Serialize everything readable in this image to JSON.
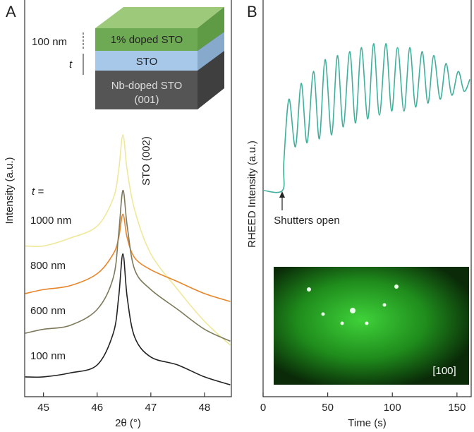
{
  "chart_data": [
    {
      "type": "line",
      "panel": "A",
      "xlabel": "2θ (°)",
      "ylabel": "Intensity (a.u.)",
      "annotations": [
        "STO (002)",
        "t ="
      ],
      "x": [
        44.66,
        45,
        45.5,
        46,
        46.3,
        46.4,
        46.48,
        46.56,
        46.7,
        47,
        47.5,
        48,
        48.48
      ],
      "series": [
        {
          "name": "1000 nm",
          "color": "#efe89a",
          "values": [
            0.38,
            0.38,
            0.4,
            0.43,
            0.5,
            0.57,
            0.66,
            0.57,
            0.47,
            0.36,
            0.27,
            0.19,
            0.13
          ]
        },
        {
          "name": "800 nm",
          "color": "#e8852a",
          "values": [
            0.26,
            0.27,
            0.28,
            0.31,
            0.36,
            0.4,
            0.46,
            0.4,
            0.35,
            0.32,
            0.29,
            0.26,
            0.24
          ]
        },
        {
          "name": "600 nm",
          "color": "#7d7a5c",
          "values": [
            0.16,
            0.17,
            0.18,
            0.22,
            0.3,
            0.41,
            0.52,
            0.43,
            0.32,
            0.27,
            0.22,
            0.17,
            0.14
          ]
        },
        {
          "name": "100 nm",
          "color": "#222222",
          "values": [
            0.05,
            0.05,
            0.06,
            0.08,
            0.16,
            0.25,
            0.36,
            0.25,
            0.15,
            0.1,
            0.08,
            0.05,
            0.03
          ]
        }
      ],
      "xlim": [
        44.65,
        48.5
      ],
      "xticks": [
        45,
        46,
        47,
        48
      ],
      "ylim": [
        0,
        1
      ],
      "inset": {
        "layers": [
          "1% doped STO",
          "STO",
          "Nb-doped STO",
          "(001)"
        ],
        "labels": [
          "100 nm",
          "t"
        ]
      }
    },
    {
      "type": "line",
      "panel": "B",
      "xlabel": "Time (s)",
      "ylabel": "RHEED Intensity (a.u.)",
      "annotations": [
        "Shutters open"
      ],
      "x": [
        0,
        15,
        16,
        20,
        25,
        29.5,
        34,
        39,
        43.5,
        48,
        53,
        57.5,
        62,
        67,
        71.5,
        76,
        81,
        85.5,
        90,
        95,
        99.5,
        104,
        109,
        113.5,
        118,
        123,
        127.5,
        132,
        137,
        141.5,
        146,
        151,
        155.5,
        160
      ],
      "series": [
        {
          "color": "#3fb09c",
          "values": [
            0.52,
            0.52,
            0.59,
            0.75,
            0.63,
            0.79,
            0.64,
            0.82,
            0.65,
            0.85,
            0.66,
            0.86,
            0.68,
            0.87,
            0.69,
            0.88,
            0.7,
            0.89,
            0.71,
            0.89,
            0.72,
            0.88,
            0.72,
            0.88,
            0.73,
            0.87,
            0.74,
            0.86,
            0.75,
            0.84,
            0.76,
            0.82,
            0.77,
            0.8
          ]
        }
      ],
      "xlim": [
        0,
        161
      ],
      "xticks": [
        0,
        50,
        100,
        150
      ],
      "ylim": [
        0,
        1
      ],
      "inset_label": "[100]"
    }
  ]
}
